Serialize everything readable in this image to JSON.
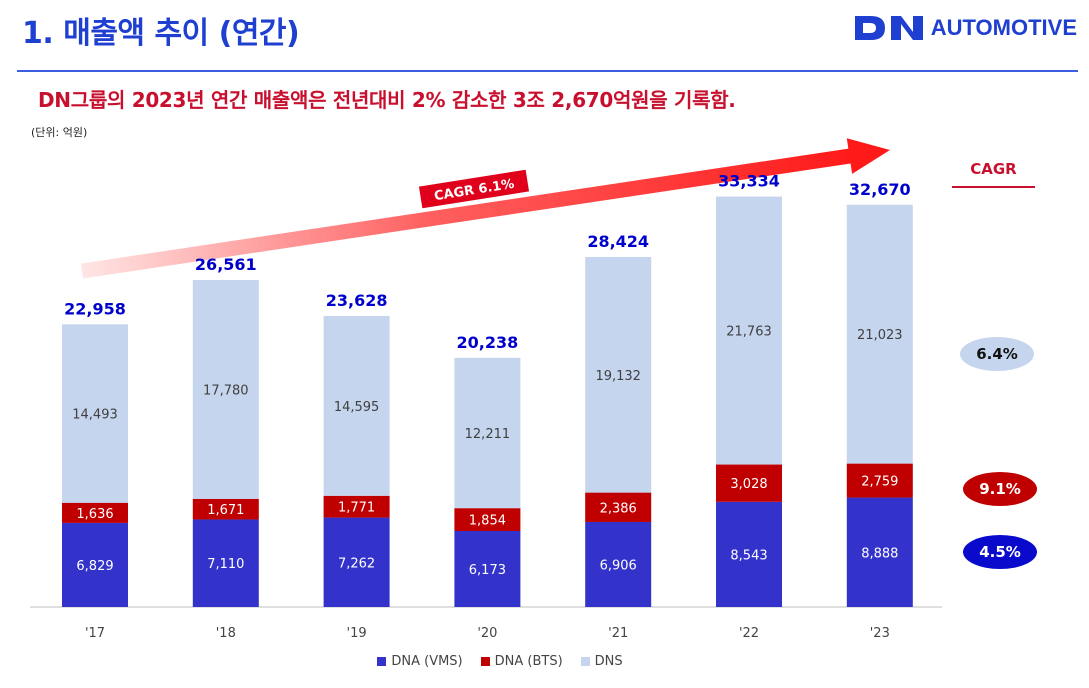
{
  "header": {
    "title": "1. 매출액 추이 (연간)",
    "logo_mark": "DN",
    "logo_text": "AUTOMOTIVE",
    "accent_color": "#1f3fd1"
  },
  "headline": "DN그룹의 2023년 연간 매출액은 전년대비 2% 감소한 3조 2,670억원을 기록함.",
  "unit_label": "(단위: 억원)",
  "chart_data": {
    "type": "bar",
    "stacked": true,
    "categories": [
      "'17",
      "'18",
      "'19",
      "'20",
      "'21",
      "'22",
      "'23"
    ],
    "series": [
      {
        "name": "DNA (VMS)",
        "color": "#3333cc",
        "values": [
          6829,
          7110,
          7262,
          6173,
          6906,
          8543,
          8888
        ]
      },
      {
        "name": "DNA (BTS)",
        "color": "#c00000",
        "values": [
          1636,
          1671,
          1771,
          1854,
          2386,
          3028,
          2759
        ]
      },
      {
        "name": "DNS",
        "color": "#c5d5ee",
        "values": [
          14493,
          17780,
          14595,
          12211,
          19132,
          21763,
          21023
        ]
      }
    ],
    "totals": [
      22958,
      26561,
      23628,
      20238,
      28424,
      33334,
      32670
    ],
    "value_labels": {
      "DNA (VMS)": [
        "6,829",
        "7,110",
        "7,262",
        "6,173",
        "6,906",
        "8,543",
        "8,888"
      ],
      "DNA (BTS)": [
        "1,636",
        "1,671",
        "1,771",
        "1,854",
        "2,386",
        "3,028",
        "2,759"
      ],
      "DNS": [
        "14,493",
        "17,780",
        "14,595",
        "12,211",
        "19,132",
        "21,763",
        "21,023"
      ]
    },
    "total_labels": [
      "22,958",
      "26,561",
      "23,628",
      "20,238",
      "28,424",
      "33,334",
      "32,670"
    ],
    "ylim": [
      0,
      36000
    ],
    "trend_arrow_label": "CAGR 6.1%",
    "legend_position": "bottom"
  },
  "cagr": {
    "heading": "CAGR",
    "items": [
      {
        "series": "DNS",
        "value": "6.4%",
        "bg": "#c5d5ee",
        "fg": "#111111"
      },
      {
        "series": "DNA (BTS)",
        "value": "9.1%",
        "bg": "#c00000",
        "fg": "#ffffff"
      },
      {
        "series": "DNA (VMS)",
        "value": "4.5%",
        "bg": "#0a0acc",
        "fg": "#ffffff"
      }
    ]
  }
}
